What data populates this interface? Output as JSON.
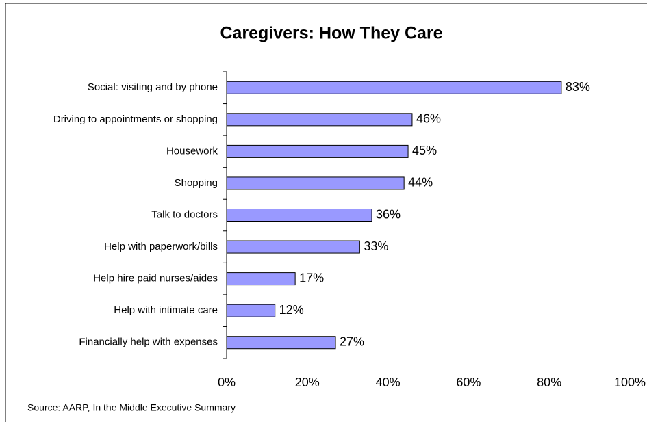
{
  "chart_data": {
    "type": "bar",
    "orientation": "horizontal",
    "title": "Caregivers: How They Care",
    "categories": [
      "Social: visiting and by phone",
      "Driving to appointments or shopping",
      "Housework",
      "Shopping",
      "Talk to doctors",
      "Help with paperwork/bills",
      "Help hire paid nurses/aides",
      "Help with intimate care",
      "Financially help with expenses"
    ],
    "values": [
      83,
      46,
      45,
      44,
      36,
      33,
      17,
      12,
      27
    ],
    "value_labels": [
      "83%",
      "46%",
      "45%",
      "44%",
      "36%",
      "33%",
      "17%",
      "12%",
      "27%"
    ],
    "color": "#9999ff",
    "xlim": [
      0,
      100
    ],
    "xticks": [
      {
        "value": 0,
        "label": "0%"
      },
      {
        "value": 20,
        "label": "20%"
      },
      {
        "value": 40,
        "label": "40%"
      },
      {
        "value": 60,
        "label": "60%"
      },
      {
        "value": 80,
        "label": "80%"
      },
      {
        "value": 100,
        "label": "100%"
      }
    ],
    "grid": false,
    "source": "Source: AARP, In the Middle Executive Summary"
  }
}
